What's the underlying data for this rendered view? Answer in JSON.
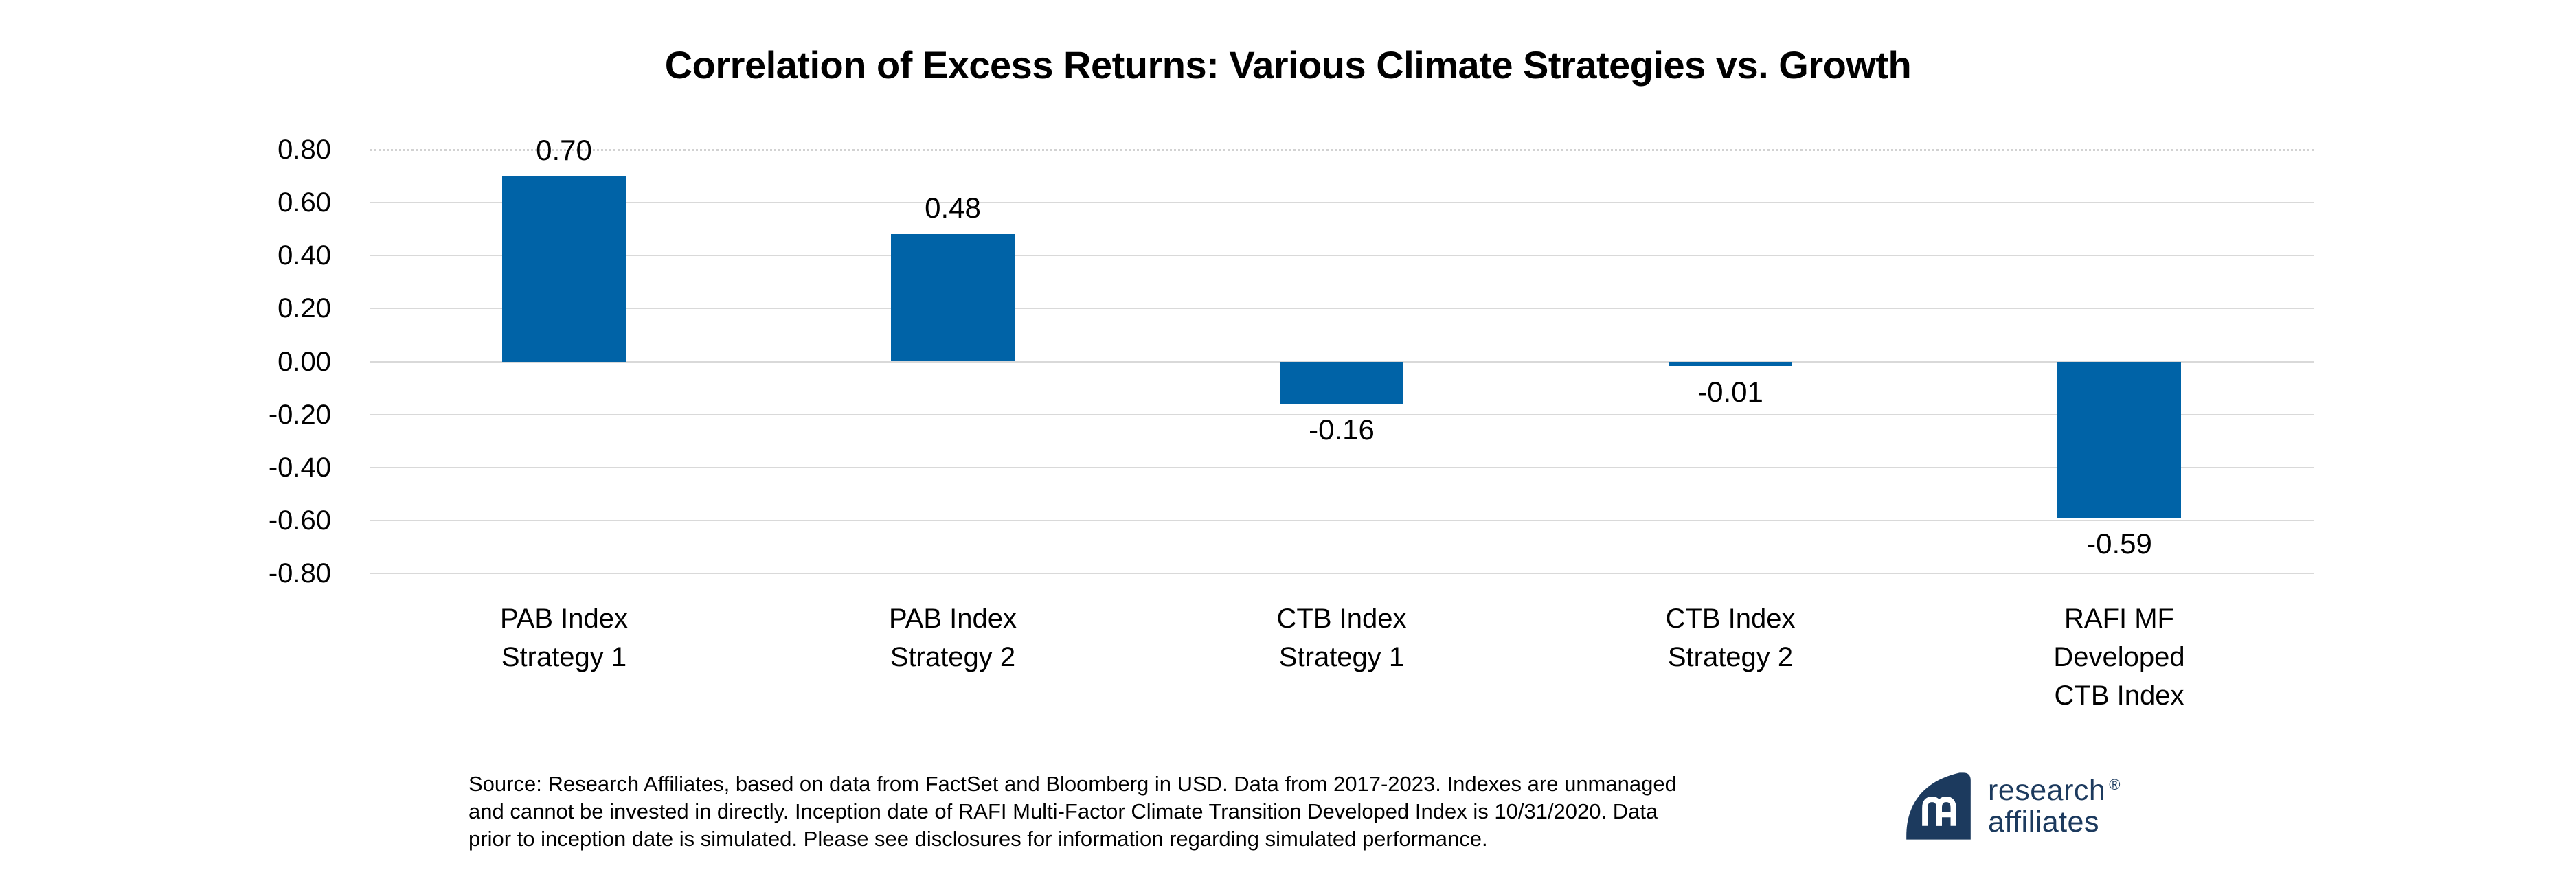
{
  "chart_data": {
    "type": "bar",
    "title": "Correlation of Excess Returns: Various Climate Strategies vs. Growth",
    "categories": [
      [
        "PAB Index",
        "Strategy 1"
      ],
      [
        "PAB Index",
        "Strategy 2"
      ],
      [
        "CTB Index",
        "Strategy 1"
      ],
      [
        "CTB Index",
        "Strategy 2"
      ],
      [
        "RAFI MF",
        "Developed",
        "CTB Index"
      ]
    ],
    "values": [
      0.7,
      0.48,
      -0.16,
      -0.01,
      -0.59
    ],
    "value_labels": [
      "0.70",
      "0.48",
      "-0.16",
      "-0.01",
      "-0.59"
    ],
    "xlabel": "",
    "ylabel": "",
    "ylim": [
      -0.8,
      0.8
    ],
    "ytick_step": 0.2,
    "ytick_labels": [
      "0.80",
      "0.60",
      "0.40",
      "0.20",
      "0.00",
      "-0.20",
      "-0.40",
      "-0.60",
      "-0.80"
    ],
    "grid": true,
    "legend": "none",
    "bar_color": "#0063a7"
  },
  "footer": {
    "lines": [
      "Source: Research Affiliates, based on data from FactSet and Bloomberg in USD. Data from 2017-2023. Indexes are unmanaged",
      "and cannot be invested in directly. Inception date of RAFI Multi-Factor Climate Transition Developed Index is 10/31/2020. Data",
      "prior to inception date is simulated. Please see disclosures for information regarding simulated performance."
    ]
  },
  "logo": {
    "line1": "research",
    "line2": "affiliates",
    "registered": "®"
  },
  "colors": {
    "bar": "#0063a7",
    "gridline": "#d9d9d9",
    "logo_navy": "#1c3a5e",
    "text": "#000000",
    "background": "#ffffff"
  }
}
